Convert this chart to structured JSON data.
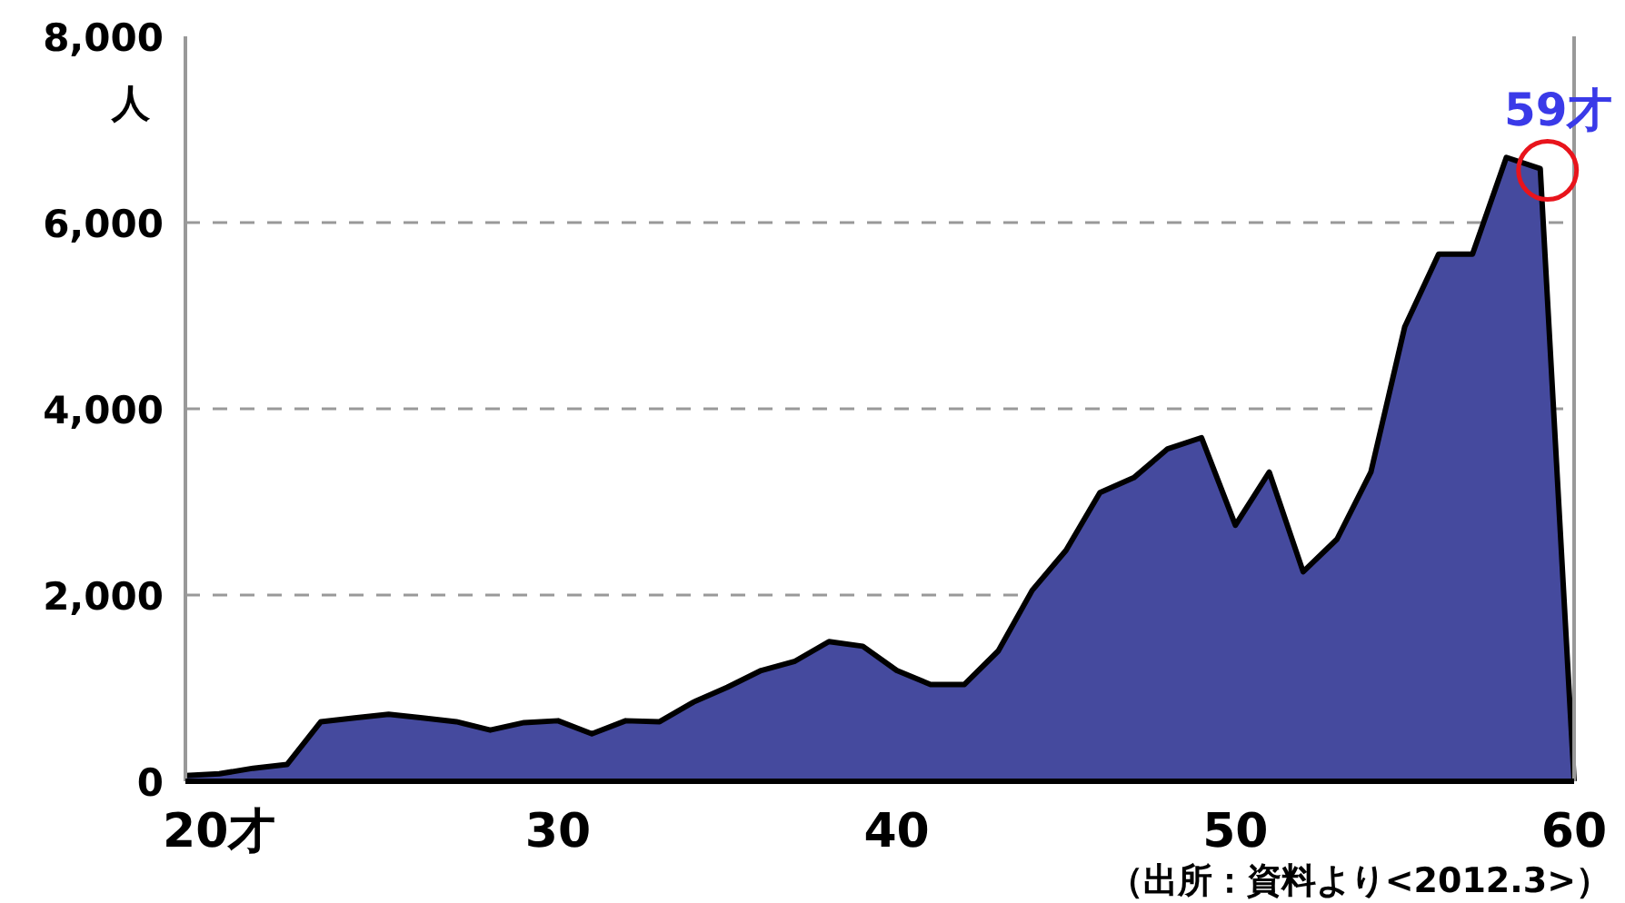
{
  "chart_data": {
    "type": "area",
    "ylabel": "人",
    "x": [
      19,
      20,
      21,
      22,
      23,
      24,
      25,
      26,
      27,
      28,
      29,
      30,
      31,
      32,
      33,
      34,
      35,
      36,
      37,
      38,
      39,
      40,
      41,
      42,
      43,
      44,
      45,
      46,
      47,
      48,
      49,
      50,
      51,
      52,
      53,
      54,
      55,
      56,
      57,
      58,
      59,
      60
    ],
    "series": [
      {
        "color": "#454a9e",
        "values": [
          60,
          80,
          140,
          180,
          640,
          680,
          720,
          680,
          640,
          550,
          630,
          650,
          510,
          650,
          640,
          850,
          1010,
          1190,
          1290,
          1500,
          1450,
          1190,
          1040,
          1040,
          1400,
          2050,
          2480,
          3100,
          3260,
          3570,
          3690,
          2750,
          3320,
          2250,
          2600,
          3320,
          4880,
          5660,
          5660,
          6700,
          6580,
          0
        ]
      }
    ],
    "xlim": [
      19,
      60
    ],
    "xticks": [
      {
        "value": 20,
        "label": "20才"
      },
      30,
      40,
      50,
      60
    ],
    "ylim": [
      0,
      8000
    ],
    "yticks": [
      0,
      {
        "value": 2000,
        "label": "2,000"
      },
      {
        "value": 4000,
        "label": "4,000"
      },
      {
        "value": 6000,
        "label": "6,000"
      },
      {
        "value": 8000,
        "label": "8,000"
      }
    ],
    "grid": "y",
    "annotations": [
      {
        "text": "59才",
        "x": 59,
        "y": 6580
      },
      "（出所：資料より<2012.3>）"
    ]
  }
}
